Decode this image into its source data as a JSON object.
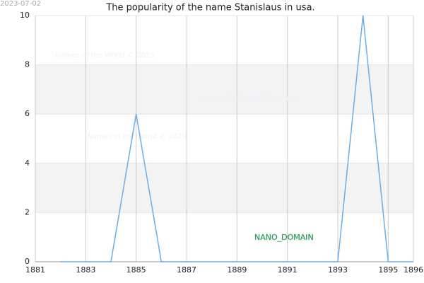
{
  "chart_data": {
    "type": "line",
    "title": "The popularity of the name Stanislaus in usa.",
    "date": "2023-07-02",
    "watermarks": [
      "Names of the World © 2023",
      "Names of the World © 2023",
      "Names of the World © 2023"
    ],
    "annotation": "NANO_DOMAIN",
    "x": [
      1882,
      1883,
      1884,
      1885,
      1886,
      1887,
      1888,
      1889,
      1890,
      1891,
      1892,
      1893,
      1894,
      1895,
      1896
    ],
    "series": [
      {
        "name": "Stanislaus",
        "color": "#6aaee8",
        "values": [
          0,
          0,
          0,
          6,
          0,
          0,
          0,
          0,
          0,
          0,
          0,
          0,
          10,
          0,
          0
        ]
      }
    ],
    "xlim": [
      1881,
      1896
    ],
    "xticks": [
      1881,
      1883,
      1885,
      1887,
      1889,
      1891,
      1893,
      1895,
      1896
    ],
    "ylim": [
      0,
      10
    ],
    "yticks": [
      0,
      2,
      4,
      6,
      8,
      10
    ],
    "grid": true
  }
}
